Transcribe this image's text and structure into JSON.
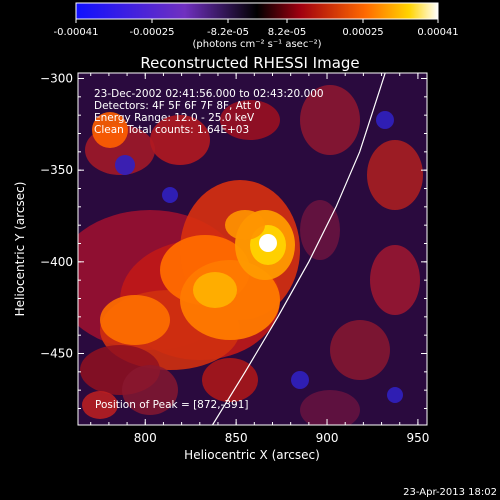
{
  "colorbar": {
    "ticks": [
      "-0.00041",
      "-0.00025",
      "-8.2e-05",
      "8.2e-05",
      "0.00025",
      "0.00041"
    ],
    "units": "(photons cm⁻² s⁻¹ asec⁻²)"
  },
  "chart_data": {
    "type": "heatmap",
    "title": "Reconstructed RHESSI Image",
    "xlabel": "Heliocentric X (arcsec)",
    "ylabel": "Heliocentric Y (arcsec)",
    "xlim": [
      763,
      955
    ],
    "ylim": [
      -489,
      -297
    ],
    "xticks": [
      800,
      850,
      900,
      950
    ],
    "yticks": [
      -300,
      -350,
      -400,
      -450
    ],
    "color_range": [
      -0.00041,
      0.00041
    ],
    "colors": {
      "min": "#0a0aff",
      "mid": "#000000",
      "max": "#ffffff",
      "limb": "#ffffff"
    },
    "annotations": [
      "23-Dec-2002 02:41:56.000 to 02:43:20.000",
      "Detectors: 4F 5F 6F 7F 8F, Att 0",
      "Energy Range: 12.0 - 25.0 keV",
      "Clean     Total counts: 1.64E+03"
    ],
    "peak_label": "Position of Peak = [872,-391]",
    "peak": [
      872,
      -391
    ],
    "limb_curve": [
      [
        837,
        -489
      ],
      [
        855,
        -460
      ],
      [
        873,
        -430
      ],
      [
        890,
        -400
      ],
      [
        905,
        -370
      ],
      [
        918,
        -340
      ],
      [
        932,
        -297
      ]
    ]
  },
  "footer": {
    "timestamp": "23-Apr-2013 18:02"
  }
}
